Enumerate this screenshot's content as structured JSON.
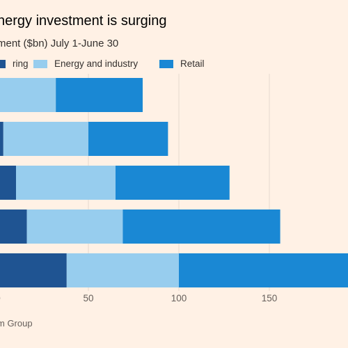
{
  "title": "nergy investment is surging",
  "subtitle": "ment ($bn) July 1-June 30",
  "source": "m Group",
  "colors": {
    "background": "#fff1e5",
    "manufacturing": "#1f5492",
    "energy_and_industry": "#97cdee",
    "retail": "#1a88d4",
    "grid": "#e6d9ce"
  },
  "legend": [
    {
      "label": "ring",
      "color": "#1f5492"
    },
    {
      "label": "Energy and industry",
      "color": "#97cdee"
    },
    {
      "label": "Retail",
      "color": "#1a88d4"
    }
  ],
  "chart_data": {
    "type": "bar",
    "orientation": "horizontal",
    "stacked": true,
    "title": "nergy investment is surging",
    "subtitle": "ment ($bn) July 1-June 30",
    "xlim": [
      0,
      200
    ],
    "x_ticks": [
      0,
      50,
      100,
      150
    ],
    "x_tick_labels": [
      "0",
      "50",
      "100",
      "150"
    ],
    "grid": "vertical",
    "legend_position": "top",
    "series": [
      {
        "name": "ring",
        "values": [
          1,
          3,
          10,
          16,
          38
        ]
      },
      {
        "name": "Energy and industry",
        "values": [
          31,
          47,
          55,
          53,
          62
        ]
      },
      {
        "name": "Retail",
        "values": [
          48,
          44,
          63,
          87,
          96
        ]
      }
    ]
  }
}
